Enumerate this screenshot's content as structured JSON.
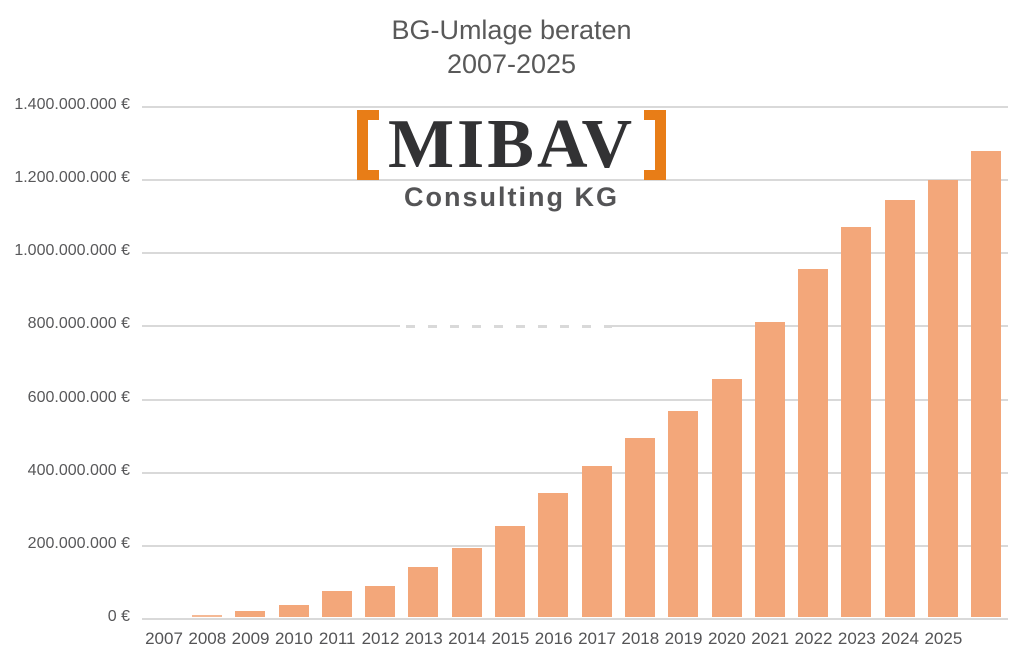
{
  "title": {
    "line1": "BG-Umlage beraten",
    "line2": "2007-2025"
  },
  "watermark": {
    "name": "MIBAV",
    "subtitle": "Consulting KG",
    "bracket_left": "[",
    "bracket_right": "]"
  },
  "colors": {
    "bar_fill": "#F3A77A",
    "bracket_orange": "#E87D17",
    "logo_wordmark_text": "#323234",
    "logo_subtitle_text": "#545456",
    "axis_label_text": "#58585A",
    "title_text": "#595959",
    "gridline": "#D9D9D9",
    "background": "#FFFFFF"
  },
  "chart_data": {
    "type": "bar",
    "title": "BG-Umlage beraten 2007-2025",
    "xlabel": "",
    "ylabel": "",
    "currency": "EUR",
    "categories": [
      "2007",
      "2008",
      "2009",
      "2010",
      "2011",
      "2012",
      "2013",
      "2014",
      "2015",
      "2016",
      "2017",
      "2018",
      "2019",
      "2020",
      "2021",
      "2022",
      "2023",
      "2024",
      "2025"
    ],
    "values": [
      5000000,
      17000000,
      34000000,
      70000000,
      84000000,
      137000000,
      190000000,
      249000000,
      340000000,
      414000000,
      489000000,
      562000000,
      650000000,
      807000000,
      952000000,
      1066000000,
      1140000000,
      1196000000,
      1274000000
    ],
    "y_tick_labels": [
      "1.400.000.000 €",
      "1.200.000.000 €",
      "1.000.000.000 €",
      "800.000.000 €",
      "600.000.000 €",
      "400.000.000 €",
      "200.000.000 €",
      "0 €"
    ],
    "ylim": [
      0,
      1400000000
    ],
    "grid": true,
    "legend": "none",
    "layout_hints": {
      "bar_slot_offset": 1,
      "note": "Bars are rendered shifted one category slot to the right of their year labels: no bar above 2007, last (tallest) bar sits right of the 2025 label. The 800M gridline has a dashed erased-watermark gap between x 400 and 612.",
      "total_slots": 20
    }
  }
}
